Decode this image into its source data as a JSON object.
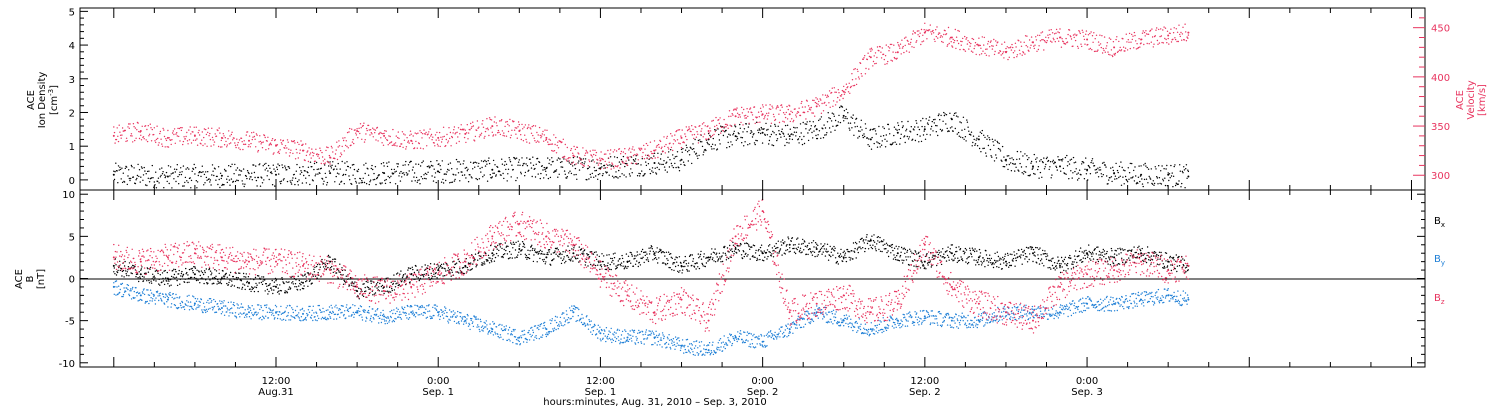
{
  "colors": {
    "black": "#000000",
    "pink": "#e8345f",
    "blue": "#1e7fd6",
    "axis": "#000000"
  },
  "x_axis": {
    "label": "hours:minutes, Aug. 31, 2010 – Sep.  3, 2010",
    "ticks": [
      {
        "t": 12,
        "top": "12:00",
        "bottom": "Aug.31"
      },
      {
        "t": 24,
        "top": "0:00",
        "bottom": "Sep. 1"
      },
      {
        "t": 36,
        "top": "12:00",
        "bottom": "Sep. 1"
      },
      {
        "t": 48,
        "top": "0:00",
        "bottom": "Sep. 2"
      },
      {
        "t": 60,
        "top": "12:00",
        "bottom": "Sep. 2"
      },
      {
        "t": 72,
        "top": "0:00",
        "bottom": "Sep. 3"
      }
    ]
  },
  "top_panel": {
    "left_label_lines": [
      "ACE",
      "Ion Density"
    ],
    "left_unit_base": "[cm",
    "left_unit_sup": "-3",
    "left_unit_end": "]",
    "right_label_lines": [
      "ACE",
      "Velocity",
      "[km/s]"
    ],
    "left_ticks": [
      "0",
      "1",
      "2",
      "3",
      "4",
      "5"
    ],
    "right_ticks": [
      "300",
      "350",
      "400",
      "450"
    ]
  },
  "bottom_panel": {
    "label_lines": [
      "ACE",
      "B",
      "[nT]"
    ],
    "ticks": [
      "-10",
      "-5",
      "0",
      "5",
      "10"
    ],
    "legend": [
      {
        "base": "B",
        "sub": "x",
        "color": "#000000"
      },
      {
        "base": "B",
        "sub": "y",
        "color": "#1e7fd6"
      },
      {
        "base": "B",
        "sub": "z",
        "color": "#e8345f"
      }
    ]
  },
  "chart_data": [
    {
      "type": "scatter",
      "panel": "top",
      "x_unit": "hours since 2010-08-31 00:00",
      "xlim": [
        -2.5,
        97
      ],
      "ylim_left": [
        -0.3,
        5.1
      ],
      "ylim_right": [
        285,
        470
      ],
      "series": [
        {
          "name": "Ion Density",
          "axis": "left",
          "color": "#000000",
          "x": [
            0,
            4,
            8,
            12,
            16,
            20,
            24,
            28,
            32,
            36,
            40,
            42,
            44,
            46,
            48,
            50,
            52,
            54,
            56,
            58,
            60,
            62,
            64,
            66,
            68,
            70,
            72,
            74,
            76,
            78,
            79.5
          ],
          "y": [
            0.15,
            0.1,
            0.12,
            0.15,
            0.2,
            0.2,
            0.25,
            0.3,
            0.35,
            0.35,
            0.5,
            0.6,
            1.2,
            1.3,
            1.4,
            1.3,
            1.5,
            1.9,
            1.2,
            1.4,
            1.5,
            1.8,
            1.2,
            0.6,
            0.4,
            0.4,
            0.3,
            0.2,
            0.15,
            0.15,
            0.1
          ]
        },
        {
          "name": "Velocity",
          "axis": "right",
          "color": "#e8345f",
          "x": [
            0,
            2,
            4,
            6,
            8,
            10,
            12,
            14,
            16,
            18,
            20,
            22,
            24,
            26,
            28,
            30,
            32,
            34,
            36,
            38,
            40,
            42,
            44,
            46,
            48,
            50,
            52,
            54,
            56,
            58,
            60,
            62,
            64,
            66,
            68,
            70,
            72,
            74,
            76,
            78,
            79.5
          ],
          "y": [
            340,
            345,
            338,
            340,
            338,
            335,
            330,
            325,
            318,
            345,
            340,
            335,
            338,
            342,
            350,
            345,
            338,
            320,
            315,
            318,
            325,
            338,
            345,
            360,
            362,
            362,
            370,
            385,
            420,
            425,
            445,
            440,
            432,
            425,
            435,
            440,
            438,
            430,
            438,
            442,
            445
          ]
        }
      ]
    },
    {
      "type": "scatter",
      "panel": "bottom",
      "x_unit": "hours since 2010-08-31 00:00",
      "xlim": [
        -2.5,
        97
      ],
      "ylim": [
        -10.5,
        10.5
      ],
      "series": [
        {
          "name": "Bx",
          "color": "#000000",
          "x": [
            0,
            2,
            4,
            6,
            8,
            10,
            12,
            14,
            16,
            18,
            20,
            22,
            24,
            26,
            28,
            30,
            32,
            34,
            36,
            38,
            40,
            42,
            44,
            46,
            48,
            50,
            52,
            54,
            56,
            58,
            60,
            62,
            64,
            66,
            68,
            70,
            72,
            74,
            76,
            78,
            79.5
          ],
          "y": [
            1.5,
            0.5,
            0,
            0.5,
            0,
            -0.5,
            -1,
            -0.5,
            2,
            -1.5,
            -1,
            0.5,
            1,
            1.5,
            3,
            3.5,
            2.5,
            3,
            2,
            2,
            3,
            1.5,
            2.5,
            3.5,
            3,
            4,
            3.5,
            2.5,
            4.5,
            3,
            2,
            3,
            2.5,
            2,
            3,
            1.5,
            3,
            2.5,
            3,
            2,
            1.5
          ]
        },
        {
          "name": "By",
          "color": "#1e7fd6",
          "x": [
            0,
            2,
            4,
            6,
            8,
            10,
            12,
            14,
            16,
            18,
            20,
            22,
            24,
            26,
            28,
            30,
            32,
            34,
            36,
            38,
            40,
            42,
            44,
            46,
            48,
            50,
            52,
            54,
            56,
            58,
            60,
            62,
            64,
            66,
            68,
            70,
            72,
            74,
            76,
            78,
            79.5
          ],
          "y": [
            -1,
            -2,
            -2.5,
            -3,
            -3.5,
            -4,
            -4,
            -4.2,
            -4,
            -4,
            -4.5,
            -4,
            -4,
            -5,
            -6,
            -7,
            -6,
            -4,
            -6.5,
            -7,
            -7,
            -8,
            -8.5,
            -7,
            -7.5,
            -6,
            -4,
            -5,
            -6,
            -5,
            -4.5,
            -5,
            -5,
            -4,
            -4,
            -4,
            -3,
            -3,
            -2.5,
            -2,
            -2.5
          ]
        },
        {
          "name": "Bz",
          "color": "#e8345f",
          "x": [
            0,
            2,
            4,
            6,
            8,
            10,
            12,
            14,
            16,
            18,
            20,
            22,
            24,
            26,
            28,
            30,
            32,
            34,
            36,
            38,
            40,
            42,
            44,
            46,
            48,
            50,
            52,
            54,
            56,
            58,
            60,
            62,
            64,
            66,
            68,
            70,
            72,
            74,
            76,
            78,
            79.5
          ],
          "y": [
            2.5,
            2,
            2.5,
            3,
            2.5,
            2,
            2,
            1.5,
            1,
            -1,
            -1.5,
            -1,
            0.5,
            2,
            5,
            6.5,
            5,
            4,
            0.5,
            -2,
            -4,
            -2.5,
            -5,
            5,
            8,
            -4,
            -3,
            -2,
            -4,
            -3,
            4,
            -1,
            -3,
            -4,
            -5,
            -1,
            0.5,
            1,
            2,
            1,
            1.5
          ]
        }
      ]
    }
  ]
}
